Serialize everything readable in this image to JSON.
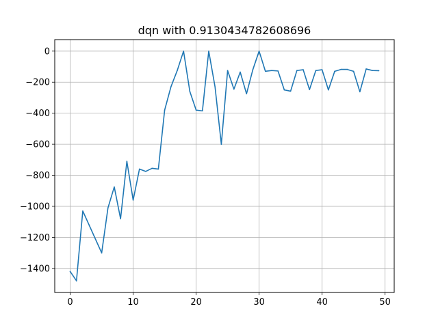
{
  "chart_data": {
    "type": "line",
    "title": "dqn with 0.9130434782608696",
    "xlabel": "",
    "ylabel": "",
    "grid": true,
    "legend": "none",
    "xlim": [
      -2.45,
      51.45
    ],
    "ylim": [
      -1555,
      74
    ],
    "xticks": [
      0,
      10,
      20,
      30,
      40,
      50
    ],
    "xtick_labels": [
      "0",
      "10",
      "20",
      "30",
      "40",
      "50"
    ],
    "yticks": [
      0,
      -200,
      -400,
      -600,
      -800,
      -1000,
      -1200,
      -1400
    ],
    "ytick_labels": [
      "0",
      "−200",
      "−400",
      "−600",
      "−800",
      "−1000",
      "−1200",
      "−1400"
    ],
    "series": [
      {
        "name": "dqn",
        "color": "#1f77b4",
        "x": [
          0,
          1,
          2,
          3,
          4,
          5,
          6,
          7,
          8,
          9,
          10,
          11,
          12,
          13,
          14,
          15,
          16,
          17,
          18,
          19,
          20,
          21,
          22,
          23,
          24,
          25,
          26,
          27,
          28,
          29,
          30,
          31,
          32,
          33,
          34,
          35,
          36,
          37,
          38,
          39,
          40,
          41,
          42,
          43,
          44,
          45,
          46,
          47,
          48,
          49
        ],
        "values": [
          -1420,
          -1480,
          -1030,
          -1120,
          -1210,
          -1300,
          -1010,
          -875,
          -1080,
          -710,
          -960,
          -760,
          -775,
          -755,
          -760,
          -380,
          -230,
          -125,
          0,
          -260,
          -380,
          -385,
          0,
          -230,
          -600,
          -125,
          -245,
          -135,
          -275,
          -120,
          0,
          -130,
          -125,
          -128,
          -250,
          -258,
          -125,
          -120,
          -248,
          -125,
          -120,
          -250,
          -130,
          -118,
          -118,
          -130,
          -262,
          -115,
          -125,
          -126
        ]
      }
    ]
  }
}
